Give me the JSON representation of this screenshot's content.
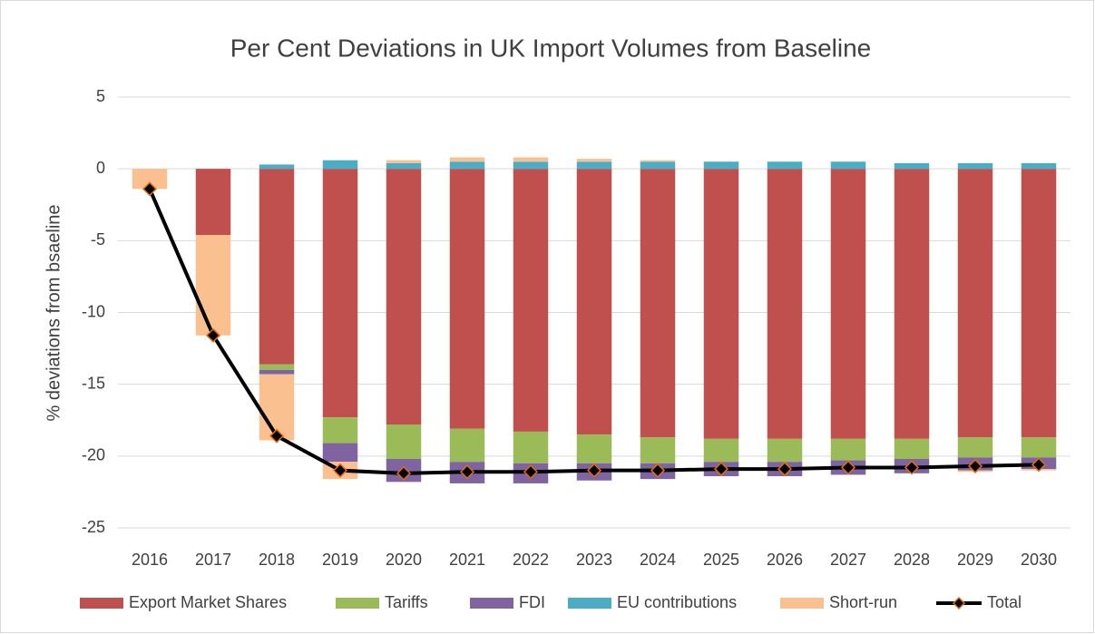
{
  "chart_data": {
    "type": "bar",
    "stacked": true,
    "title": "Per Cent Deviations in UK Import Volumes from Baseline",
    "y_label": "% deviations from bsaeline",
    "categories": [
      "2016",
      "2017",
      "2018",
      "2019",
      "2020",
      "2021",
      "2022",
      "2023",
      "2024",
      "2025",
      "2026",
      "2027",
      "2028",
      "2029",
      "2030"
    ],
    "ylim": [
      -25,
      5
    ],
    "yticks": [
      -25,
      -20,
      -15,
      -10,
      -5,
      0,
      5
    ],
    "grid": true,
    "legend": "bottom",
    "series": [
      {
        "name": "Export Market Shares",
        "type": "bar",
        "color": "#c0504d",
        "values": [
          0,
          -4.6,
          -13.6,
          -17.3,
          -17.8,
          -18.1,
          -18.3,
          -18.5,
          -18.7,
          -18.8,
          -18.8,
          -18.8,
          -18.8,
          -18.7,
          -18.7
        ]
      },
      {
        "name": "Tariffs",
        "type": "bar",
        "color": "#9bbb59",
        "values": [
          0,
          0,
          -0.4,
          -1.8,
          -2.4,
          -2.3,
          -2.2,
          -2.0,
          -1.8,
          -1.6,
          -1.6,
          -1.5,
          -1.4,
          -1.4,
          -1.4
        ]
      },
      {
        "name": "FDI",
        "type": "bar",
        "color": "#8064a2",
        "values": [
          0,
          0,
          -0.3,
          -1.3,
          -1.6,
          -1.5,
          -1.4,
          -1.2,
          -1.1,
          -1.0,
          -1.0,
          -1.0,
          -1.0,
          -0.9,
          -0.8
        ]
      },
      {
        "name": "EU contributions",
        "type": "bar",
        "color": "#4bacc6",
        "values": [
          0,
          0,
          0.3,
          0.6,
          0.4,
          0.5,
          0.5,
          0.5,
          0.5,
          0.5,
          0.5,
          0.5,
          0.4,
          0.4,
          0.4
        ]
      },
      {
        "name": "Short-run",
        "type": "bar",
        "color": "#fac090",
        "values": [
          -1.4,
          -7.0,
          -4.6,
          -1.2,
          0.2,
          0.3,
          0.3,
          0.2,
          0.1,
          0,
          0,
          0,
          0,
          -0.1,
          -0.1
        ]
      },
      {
        "name": "Total",
        "type": "line",
        "color": "#000000",
        "marker_color": "#e46c0a",
        "values": [
          -1.4,
          -11.6,
          -18.6,
          -21.0,
          -21.2,
          -21.1,
          -21.1,
          -21.0,
          -21.0,
          -20.9,
          -20.9,
          -20.8,
          -20.8,
          -20.7,
          -20.6
        ]
      }
    ]
  }
}
